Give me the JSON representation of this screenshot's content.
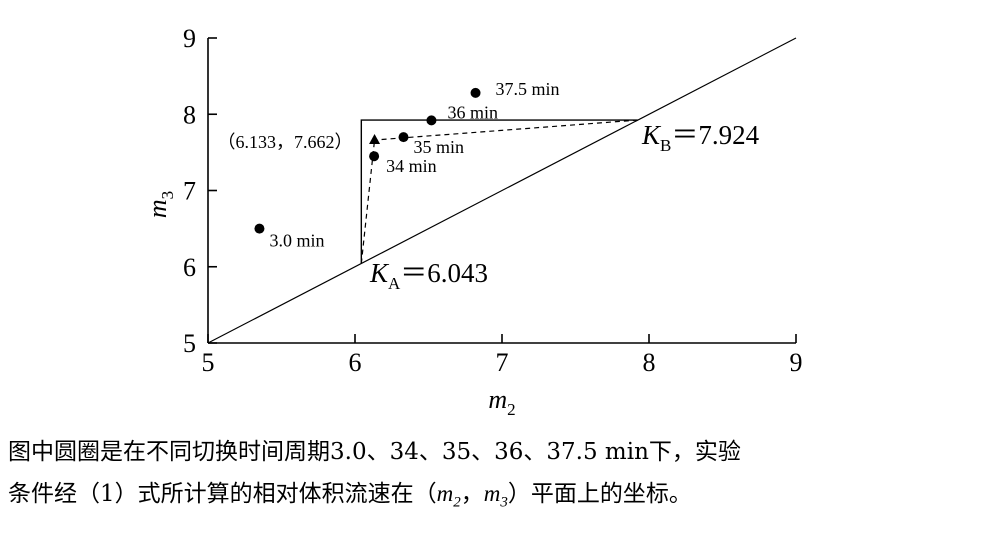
{
  "chart_data": {
    "type": "scatter",
    "xlabel": "m2",
    "ylabel": "m3",
    "xlim": [
      5,
      9
    ],
    "ylim": [
      5,
      9
    ],
    "xticks": [
      "5",
      "6",
      "7",
      "8",
      "9"
    ],
    "yticks": [
      "5",
      "6",
      "7",
      "8",
      "9"
    ],
    "points": [
      {
        "x": 5.35,
        "y": 6.5,
        "label": "3.0 min"
      },
      {
        "x": 6.13,
        "y": 7.45,
        "label": "34 min"
      },
      {
        "x": 6.33,
        "y": 7.7,
        "label": "35 min"
      },
      {
        "x": 6.52,
        "y": 7.92,
        "label": "36 min"
      },
      {
        "x": 6.82,
        "y": 8.28,
        "label": "37.5 min"
      }
    ],
    "triangle_point": {
      "x": 6.133,
      "y": 7.662,
      "label": "（6.133，7.662）"
    },
    "diagonal": [
      [
        5,
        5
      ],
      [
        9,
        9
      ]
    ],
    "kA": {
      "value": 6.043,
      "label_main": "K",
      "label_sub": "A",
      "label_rest": "＝6.043"
    },
    "kB": {
      "value": 7.924,
      "label_main": "K",
      "label_sub": "B",
      "label_rest": "＝7.924"
    },
    "grid": false
  },
  "caption": {
    "line1": "图中圆圈是在不同切换时间周期3.0、34、35、36、37.5 min下，实验",
    "line2_a": "条件经（1）式所计算的相对体积流速在（",
    "line2_m2": "m",
    "line2_m2_sub": "2",
    "line2_sep": "，",
    "line2_m3": "m",
    "line2_m3_sub": "3",
    "line2_b": "）平面上的坐标。"
  }
}
